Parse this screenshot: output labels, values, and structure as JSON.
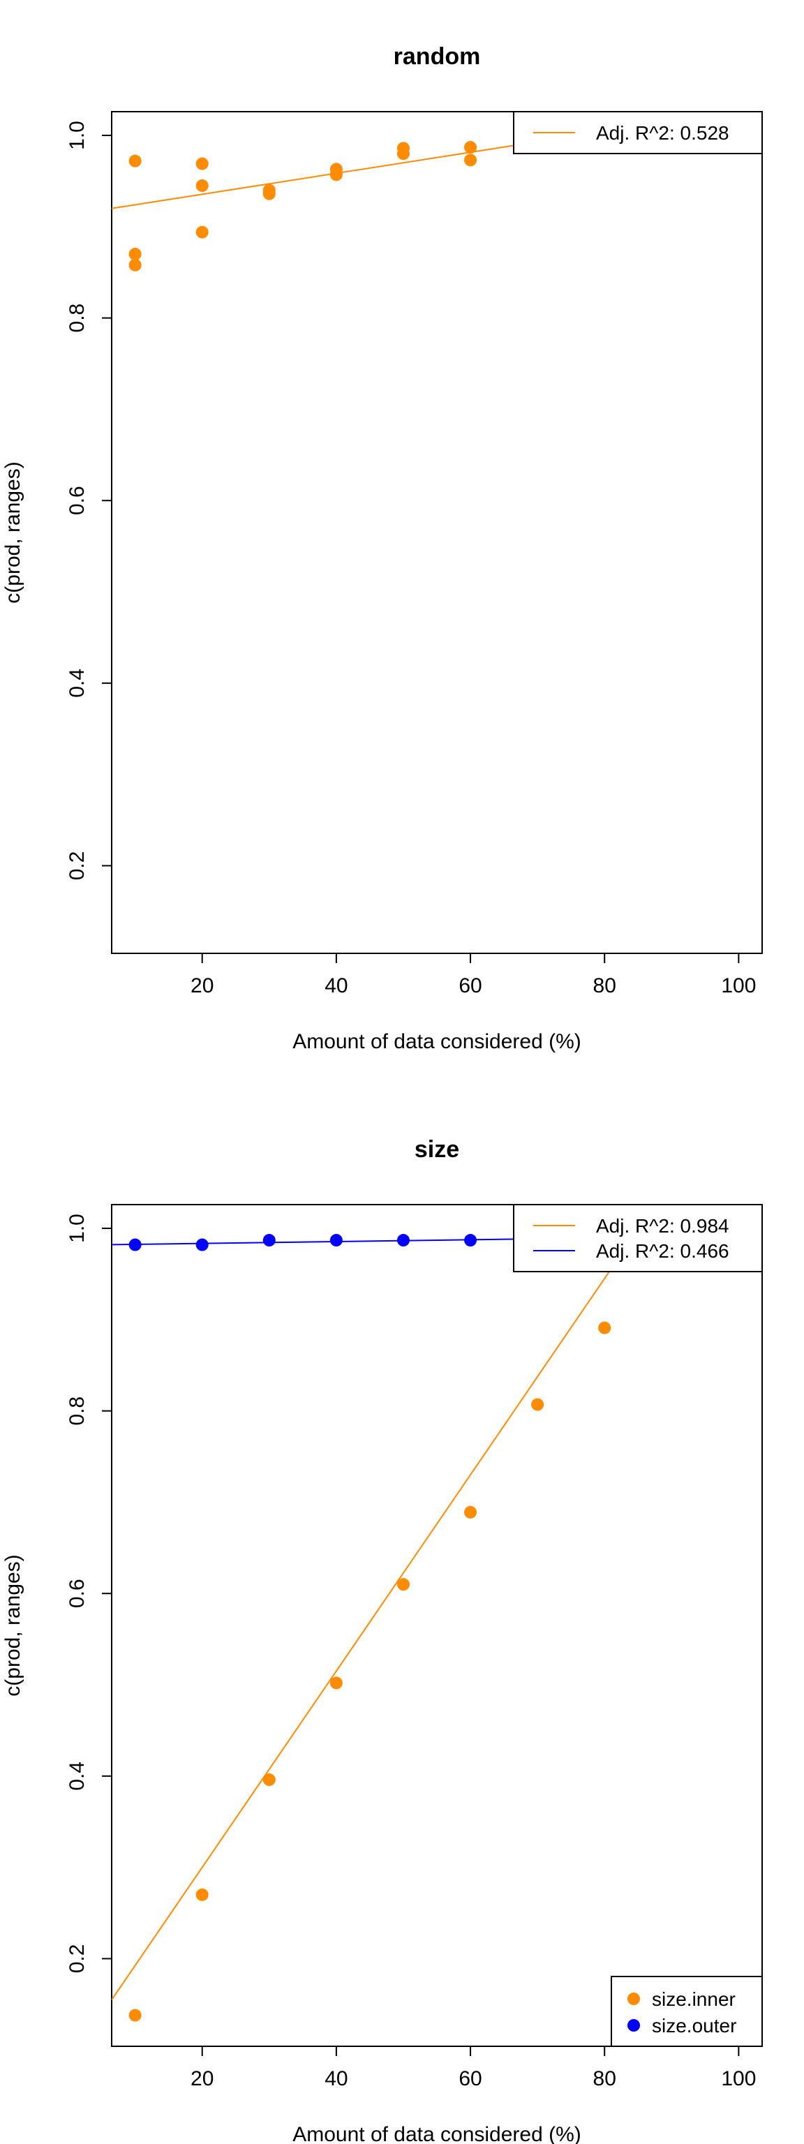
{
  "chart_data": [
    {
      "type": "scatter",
      "title": "random",
      "xlabel": "Amount of data considered (%)",
      "ylabel": "c(prod, ranges)",
      "xlim": [
        6.5,
        103.5
      ],
      "ylim": [
        0.104,
        1.026
      ],
      "xticks": [
        20,
        40,
        60,
        80,
        100
      ],
      "yticks": [
        0.2,
        0.4,
        0.6,
        0.8,
        1.0
      ],
      "xtick_labels": [
        "20",
        "40",
        "60",
        "80",
        "100"
      ],
      "ytick_labels": [
        "0.2",
        "0.4",
        "0.6",
        "0.8",
        "1.0"
      ],
      "grid": false,
      "series": [
        {
          "color": "#FF8C00",
          "x": [
            10,
            10,
            10,
            20,
            20,
            20,
            30,
            30,
            40,
            40,
            50,
            50,
            60,
            60
          ],
          "y": [
            0.972,
            0.87,
            0.858,
            0.969,
            0.945,
            0.894,
            0.94,
            0.936,
            0.963,
            0.957,
            0.986,
            0.98,
            0.987,
            0.973
          ]
        }
      ],
      "fit_lines": [
        {
          "color": "#FF8C00",
          "slope": 0.00115,
          "intercept": 0.9125
        }
      ],
      "legend": {
        "placement": "top-right",
        "entries": [
          {
            "label": "Adj. R^2: 0.528",
            "color": "#FF8C00",
            "marker": "line"
          }
        ]
      }
    },
    {
      "type": "scatter",
      "title": "size",
      "xlabel": "Amount of data considered (%)",
      "ylabel": "c(prod, ranges)",
      "xlim": [
        6.5,
        103.5
      ],
      "ylim": [
        0.104,
        1.026
      ],
      "xticks": [
        20,
        40,
        60,
        80,
        100
      ],
      "yticks": [
        0.2,
        0.4,
        0.6,
        0.8,
        1.0
      ],
      "xtick_labels": [
        "20",
        "40",
        "60",
        "80",
        "100"
      ],
      "ytick_labels": [
        "0.2",
        "0.4",
        "0.6",
        "0.8",
        "1.0"
      ],
      "grid": false,
      "series": [
        {
          "name": "size.inner",
          "color": "#FF8C00",
          "x": [
            10,
            20,
            30,
            40,
            50,
            60,
            70,
            80
          ],
          "y": [
            0.138,
            0.27,
            0.396,
            0.502,
            0.61,
            0.689,
            0.807,
            0.891
          ]
        },
        {
          "name": "size.outer",
          "color": "#0000FF",
          "x": [
            10,
            20,
            30,
            40,
            50,
            60
          ],
          "y": [
            0.982,
            0.982,
            0.987,
            0.987,
            0.987,
            0.987
          ]
        }
      ],
      "fit_lines": [
        {
          "color": "#FF8C00",
          "slope": 0.01075,
          "intercept": 0.085
        },
        {
          "color": "#0000FF",
          "slope": 0.0001,
          "intercept": 0.9815
        }
      ],
      "legend": {
        "placement": "top-right",
        "entries": [
          {
            "label": "Adj. R^2: 0.984",
            "color": "#FF8C00",
            "marker": "line"
          },
          {
            "label": "Adj. R^2: 0.466",
            "color": "#0000FF",
            "marker": "line"
          }
        ]
      },
      "legend2": {
        "placement": "bottom-right",
        "entries": [
          {
            "label": "size.inner",
            "color": "#FF8C00",
            "marker": "point"
          },
          {
            "label": "size.outer",
            "color": "#0000FF",
            "marker": "point"
          }
        ]
      }
    }
  ]
}
